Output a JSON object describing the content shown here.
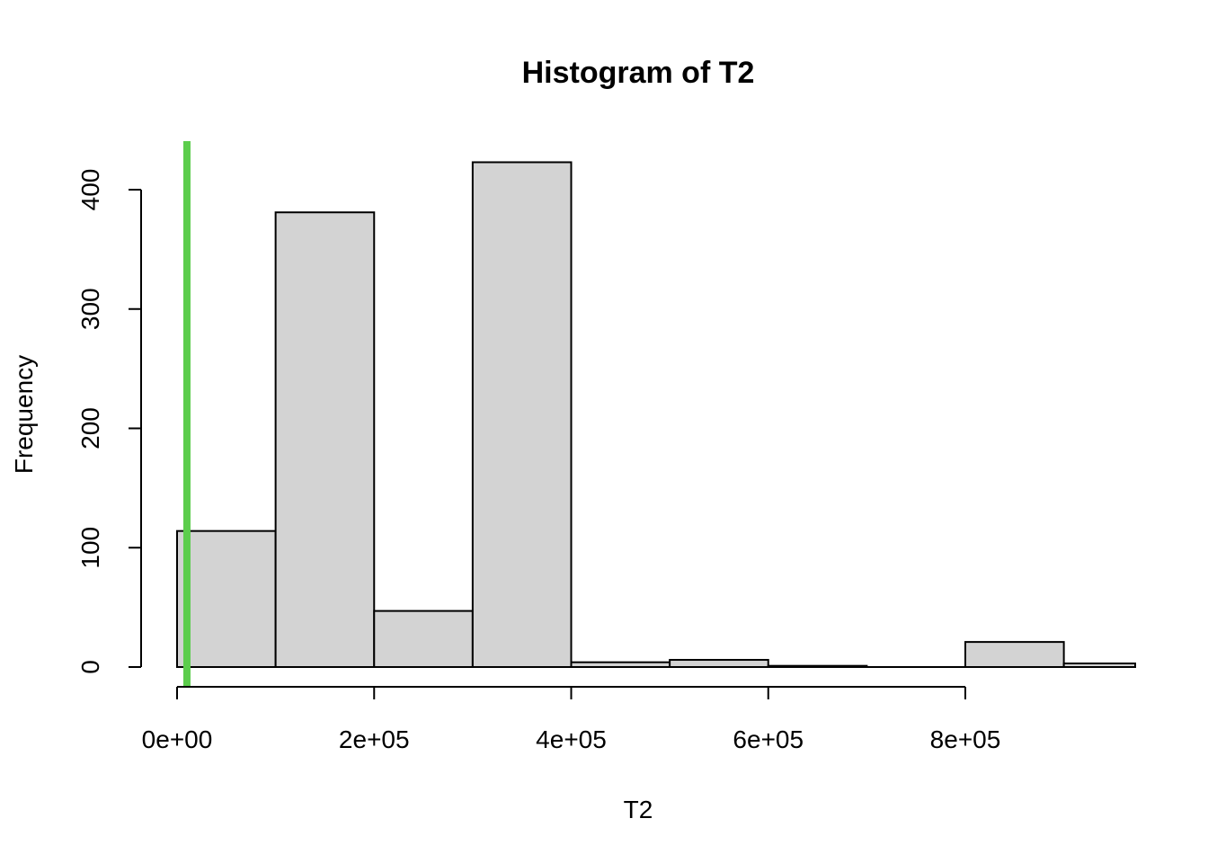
{
  "chart_data": {
    "type": "bar",
    "title": "Histogram of T2",
    "xlabel": "T2",
    "ylabel": "Frequency",
    "xlim": [
      0,
      970000
    ],
    "ylim": [
      0,
      440
    ],
    "bin_edges": [
      0,
      100000,
      200000,
      300000,
      400000,
      500000,
      600000,
      700000,
      800000,
      900000,
      1000000
    ],
    "values": [
      114,
      381,
      47,
      423,
      4,
      6,
      1,
      0,
      21,
      3
    ],
    "x_ticks": [
      0,
      200000,
      400000,
      600000,
      800000
    ],
    "x_tick_labels": [
      "0e+00",
      "2e+05",
      "4e+05",
      "6e+05",
      "8e+05"
    ],
    "y_ticks": [
      0,
      100,
      200,
      300,
      400
    ],
    "y_tick_labels": [
      "0",
      "100",
      "200",
      "300",
      "400"
    ],
    "bar_color": "#d3d3d3",
    "reference_line": {
      "x": 10000,
      "color": "#5ccd4c"
    },
    "grid": false
  }
}
